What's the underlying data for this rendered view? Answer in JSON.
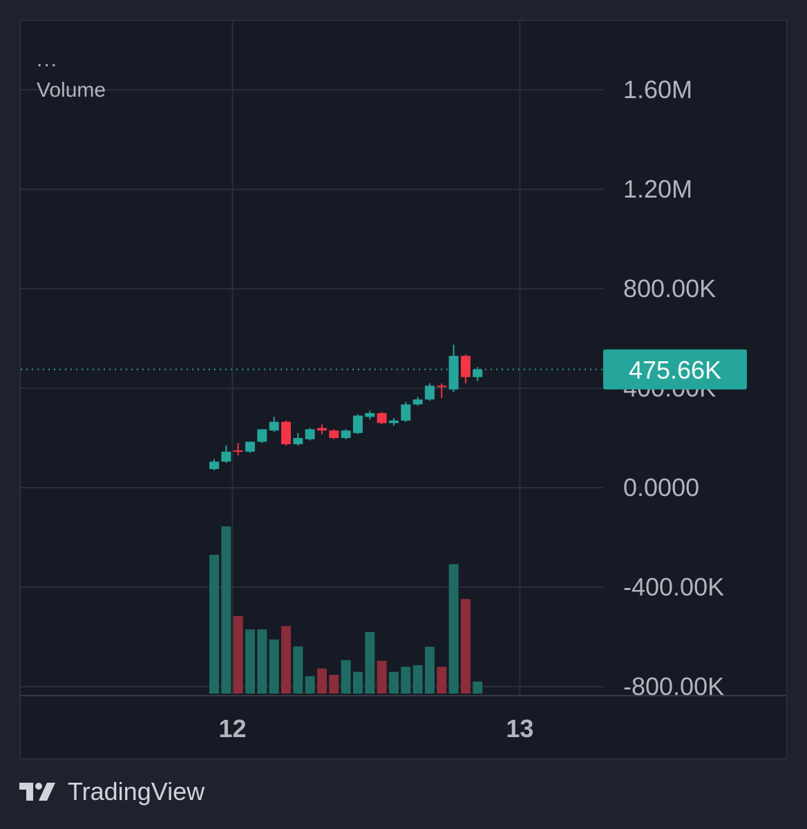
{
  "legend": {
    "dots": "...",
    "indicator": "Volume"
  },
  "brand": {
    "name": "TradingView",
    "logo_icon": "tradingview-logo-icon"
  },
  "colors": {
    "up": "#26a69a",
    "down": "#f23645",
    "up_volume": "#1f6b63",
    "down_volume": "#8c2d3a",
    "grid": "#2a2e39",
    "axis_text": "#b2b5be",
    "background": "#161a25"
  },
  "chart_data": {
    "type": "candlestick",
    "title": "",
    "ylabel": "",
    "price_axis": {
      "ticks": [
        "1.60M",
        "1.20M",
        "800.00K",
        "400.00K",
        "0.0000",
        "-400.00K",
        "-800.00K"
      ],
      "tick_values": [
        1600000,
        1200000,
        800000,
        400000,
        0,
        -400000,
        -800000
      ],
      "ylim": [
        -810000,
        1700000
      ]
    },
    "x_axis": {
      "ticks": [
        "12",
        "13"
      ],
      "tick_positions": [
        1.53,
        25.53
      ]
    },
    "last_price": {
      "label": "475.66K",
      "value": 475660
    },
    "candles": [
      {
        "t": 0,
        "o": 75000,
        "h": 115000,
        "l": 70000,
        "c": 105000
      },
      {
        "t": 1,
        "o": 105000,
        "h": 170000,
        "l": 100000,
        "c": 145000
      },
      {
        "t": 2,
        "o": 150000,
        "h": 180000,
        "l": 130000,
        "c": 145000
      },
      {
        "t": 3,
        "o": 145000,
        "h": 185000,
        "l": 140000,
        "c": 185000
      },
      {
        "t": 4,
        "o": 185000,
        "h": 235000,
        "l": 180000,
        "c": 235000
      },
      {
        "t": 5,
        "o": 230000,
        "h": 285000,
        "l": 225000,
        "c": 265000
      },
      {
        "t": 6,
        "o": 265000,
        "h": 270000,
        "l": 170000,
        "c": 175000
      },
      {
        "t": 7,
        "o": 175000,
        "h": 220000,
        "l": 170000,
        "c": 200000
      },
      {
        "t": 8,
        "o": 195000,
        "h": 240000,
        "l": 190000,
        "c": 235000
      },
      {
        "t": 9,
        "o": 240000,
        "h": 255000,
        "l": 215000,
        "c": 230000
      },
      {
        "t": 10,
        "o": 230000,
        "h": 235000,
        "l": 195000,
        "c": 200000
      },
      {
        "t": 11,
        "o": 200000,
        "h": 235000,
        "l": 195000,
        "c": 230000
      },
      {
        "t": 12,
        "o": 220000,
        "h": 295000,
        "l": 215000,
        "c": 290000
      },
      {
        "t": 13,
        "o": 285000,
        "h": 310000,
        "l": 275000,
        "c": 300000
      },
      {
        "t": 14,
        "o": 300000,
        "h": 305000,
        "l": 255000,
        "c": 260000
      },
      {
        "t": 15,
        "o": 260000,
        "h": 280000,
        "l": 250000,
        "c": 270000
      },
      {
        "t": 16,
        "o": 270000,
        "h": 345000,
        "l": 265000,
        "c": 335000
      },
      {
        "t": 17,
        "o": 335000,
        "h": 365000,
        "l": 330000,
        "c": 355000
      },
      {
        "t": 18,
        "o": 355000,
        "h": 420000,
        "l": 350000,
        "c": 410000
      },
      {
        "t": 19,
        "o": 410000,
        "h": 420000,
        "l": 360000,
        "c": 405000
      },
      {
        "t": 20,
        "o": 395000,
        "h": 575000,
        "l": 385000,
        "c": 530000
      },
      {
        "t": 21,
        "o": 530000,
        "h": 535000,
        "l": 420000,
        "c": 445000
      },
      {
        "t": 22,
        "o": 445000,
        "h": 485000,
        "l": 430000,
        "c": 475660
      }
    ],
    "volume": {
      "ylim": [
        0,
        500000
      ],
      "values": [
        415000,
        500000,
        232000,
        192000,
        192000,
        162000,
        202000,
        141000,
        52000,
        75000,
        56000,
        100000,
        65000,
        184000,
        98000,
        65000,
        80000,
        85000,
        140000,
        80000,
        387000,
        283000,
        36000
      ],
      "direction": [
        "up",
        "up",
        "down",
        "up",
        "up",
        "up",
        "down",
        "up",
        "up",
        "down",
        "down",
        "up",
        "up",
        "up",
        "down",
        "up",
        "up",
        "up",
        "up",
        "down",
        "up",
        "down",
        "up"
      ]
    }
  }
}
